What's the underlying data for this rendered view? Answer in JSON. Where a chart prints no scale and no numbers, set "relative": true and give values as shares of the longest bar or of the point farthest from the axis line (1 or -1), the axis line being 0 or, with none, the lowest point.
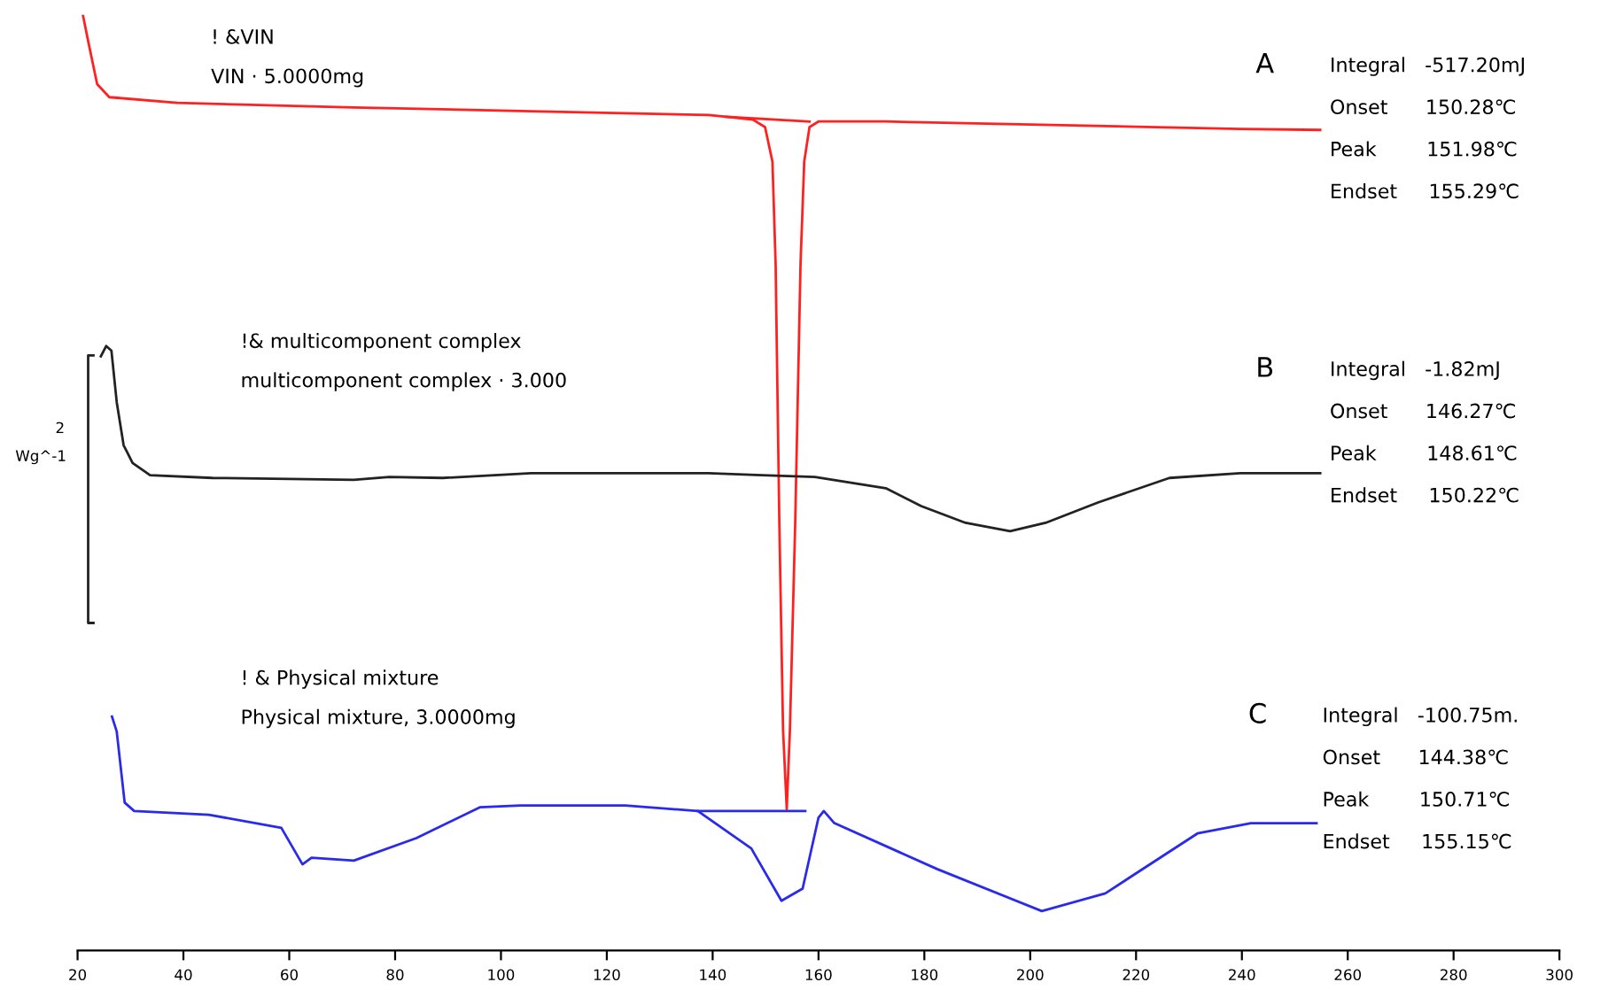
{
  "chart_data": {
    "type": "line",
    "relative": true,
    "xlim": [
      20,
      300
    ],
    "xticks": [
      20,
      40,
      60,
      80,
      100,
      120,
      140,
      160,
      180,
      200,
      220,
      240,
      260,
      280,
      300
    ],
    "grid": false,
    "marker": "none",
    "line_style": "solid",
    "tick_labels": "x",
    "series": [
      {
        "color": "#ff2020",
        "x": [
          21.0,
          22.0,
          23.7,
          26.0,
          38.8,
          72.2,
          105.7,
          139.2,
          142.6,
          147.6,
          149.9,
          151.3,
          151.9,
          152.6,
          153.3,
          154.0,
          154.6,
          155.6,
          156.6,
          157.3,
          158.3,
          160.0,
          172.7,
          206.2,
          239.7,
          254.8
        ],
        "values": [
          1.0,
          0.972,
          0.926,
          0.912,
          0.906,
          0.901,
          0.897,
          0.893,
          0.891,
          0.888,
          0.88,
          0.843,
          0.733,
          0.457,
          0.236,
          0.151,
          0.236,
          0.457,
          0.733,
          0.843,
          0.88,
          0.886,
          0.886,
          0.882,
          0.878,
          0.877
        ]
      },
      {
        "color": "#ff2020",
        "x": [
          142.6,
          158.3
        ],
        "values": [
          0.891,
          0.886
        ]
      },
      {
        "color": "#222222",
        "x": [
          24.4,
          25.4,
          26.4,
          27.4,
          28.7,
          30.4,
          33.7,
          45.5,
          72.2,
          78.9,
          89.0,
          105.7,
          139.2,
          149.3,
          159.3,
          172.7,
          179.4,
          187.8,
          196.2,
          202.9,
          212.9,
          226.3,
          239.7,
          254.8
        ],
        "values": [
          0.635,
          0.646,
          0.641,
          0.586,
          0.54,
          0.521,
          0.508,
          0.505,
          0.503,
          0.506,
          0.505,
          0.51,
          0.51,
          0.508,
          0.506,
          0.494,
          0.475,
          0.457,
          0.448,
          0.457,
          0.479,
          0.505,
          0.51,
          0.51
        ]
      },
      {
        "color": "#2a2aee",
        "x": [
          26.5,
          27.4,
          28.9,
          30.7,
          44.8,
          58.5,
          62.5,
          64.2,
          72.2,
          84.0,
          96.0,
          103.7,
          123.5,
          137.2,
          147.3,
          153.0,
          157.0,
          160.0,
          161.0,
          163.0,
          182.4,
          202.2,
          214.2,
          231.6,
          241.7,
          254.1
        ],
        "values": [
          0.25,
          0.234,
          0.158,
          0.149,
          0.145,
          0.131,
          0.092,
          0.099,
          0.096,
          0.12,
          0.153,
          0.155,
          0.155,
          0.149,
          0.109,
          0.053,
          0.066,
          0.142,
          0.149,
          0.136,
          0.087,
          0.042,
          0.061,
          0.125,
          0.136,
          0.136
        ]
      },
      {
        "color": "#2a2aee",
        "x": [
          137.2,
          157.5
        ],
        "values": [
          0.149,
          0.149
        ]
      },
      {
        "color": "#222222",
        "x": [
          23.0,
          22.0,
          22.0,
          23.0
        ],
        "values": [
          0.636,
          0.636,
          0.35,
          0.35
        ]
      }
    ],
    "annotations": [
      "! &VIN",
      "VIN · 5.0000mg",
      "A",
      "Integral   -517.20mJ",
      "Onset      150.28℃",
      "Peak        151.98℃",
      "Endset     155.29℃",
      "!& multicomponent complex",
      "multicomponent complex · 3.000",
      "B",
      "Integral   -1.82mJ",
      "Onset      146.27℃",
      "Peak        148.61℃",
      "Endset     150.22℃",
      "! & Physical mixture",
      "Physical mixture, 3.0000mg",
      "C",
      "Integral   -100.75m.",
      "Onset      144.38℃",
      "Peak        150.71℃",
      "Endset     155.15℃",
      "2",
      "Wg^-1"
    ]
  }
}
